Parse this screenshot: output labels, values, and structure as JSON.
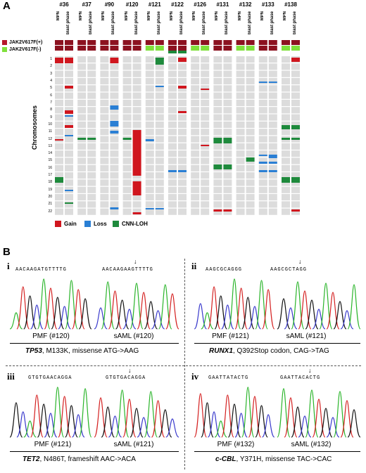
{
  "panel_a": {
    "letter": "A",
    "cases": [
      "#36",
      "#37",
      "#90",
      "#120",
      "#121",
      "#122",
      "#126",
      "#131",
      "#132",
      "#133",
      "#138"
    ],
    "phase_labels": [
      "MPN",
      "blast phase"
    ],
    "legend_top": [
      {
        "label": "JAK2V617F(+)",
        "color": "#b5172b"
      },
      {
        "label": "JAK2V617F(-)",
        "color": "#80e03c"
      }
    ],
    "y_axis_label": "Chromosomes",
    "chromosomes": [
      "1",
      "2",
      "3",
      "4",
      "5",
      "6",
      "7",
      "8",
      "9",
      "10",
      "11",
      "12",
      "13",
      "14",
      "15",
      "16",
      "17",
      "18",
      "19",
      "20",
      "21",
      "22"
    ],
    "legend_bottom": [
      {
        "label": "Gain",
        "color": "#d0161e"
      },
      {
        "label": "Loss",
        "color": "#2a7fd4"
      },
      {
        "label": "CNN-LOH",
        "color": "#1e8a3c"
      }
    ],
    "colors": {
      "background_cell": "#dcdcdc",
      "jak_pos": "#8c1220",
      "jak_neg": "#80e03c"
    }
  },
  "panel_b": {
    "letter": "B",
    "subpanels": [
      {
        "roman": "i",
        "seq_left": "AACAAGATGTTTTG",
        "seq_right": "AACAAGAAGTTTTG",
        "label_left": "PMF (#120)",
        "label_right": "sAML (#120)",
        "gene": "TP53",
        "caption": ", M133K, missense ATG->AAG"
      },
      {
        "roman": "ii",
        "seq_left": "AAGCGCAGGG",
        "seq_right": "AAGCGCTAGG",
        "label_left": "PMF (#121)",
        "label_right": "sAML (#121)",
        "gene": "RUNX1",
        "caption": ", Q392Stop codon, CAG->TAG"
      },
      {
        "roman": "iii",
        "seq_left": "GTGTGAACAGGA",
        "seq_right": "GTGTGACAGGA",
        "label_left": "PMF (#121)",
        "label_right": "sAML (#121)",
        "gene": "TET2",
        "caption": ", N486T, frameshift AAC->ACA"
      },
      {
        "roman": "iv",
        "seq_left": "GAATTATACTG",
        "seq_right": "GAATTACACTG",
        "label_left": "PMF (#132)",
        "label_right": "sAML (#132)",
        "gene": "c-CBL",
        "caption": ", Y371H, missense TAC->CAC"
      }
    ]
  }
}
